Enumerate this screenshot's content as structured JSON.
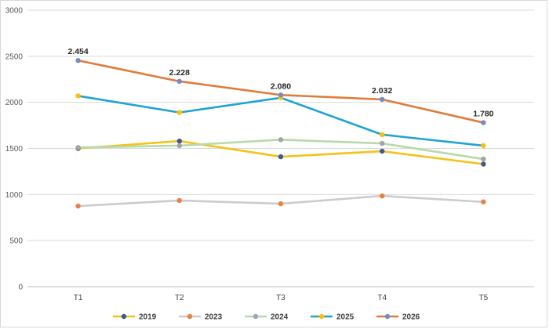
{
  "chart_data": {
    "type": "line",
    "title": "",
    "xlabel": "",
    "ylabel": "",
    "categories": [
      "T1",
      "T2",
      "T3",
      "T4",
      "T5"
    ],
    "ylim": [
      0,
      3000
    ],
    "yticks": [
      0,
      500,
      1000,
      1500,
      2000,
      2500,
      3000
    ],
    "grid": true,
    "legend_position": "bottom",
    "series": [
      {
        "name": "2019",
        "line_color": "#f5c216",
        "marker_color": "#3a5a99",
        "values": [
          1500,
          1580,
          1410,
          1470,
          1330
        ]
      },
      {
        "name": "2023",
        "line_color": "#cccccc",
        "marker_color": "#e8823e",
        "values": [
          875,
          935,
          900,
          985,
          920
        ]
      },
      {
        "name": "2024",
        "line_color": "#b8d9a8",
        "marker_color": "#a5a5a5",
        "values": [
          1510,
          1530,
          1595,
          1555,
          1385
        ]
      },
      {
        "name": "2025",
        "line_color": "#1ea3d4",
        "marker_color": "#ffc000",
        "values": [
          2070,
          1890,
          2050,
          1650,
          1530
        ]
      },
      {
        "name": "2026",
        "line_color": "#e07b39",
        "marker_color": "#6f8fc8",
        "values": [
          2454,
          2228,
          2080,
          2032,
          1780
        ]
      }
    ],
    "data_labels": {
      "series": "2026",
      "labels": [
        "2.454",
        "2.228",
        "2.080",
        "2.032",
        "1.780"
      ]
    }
  }
}
